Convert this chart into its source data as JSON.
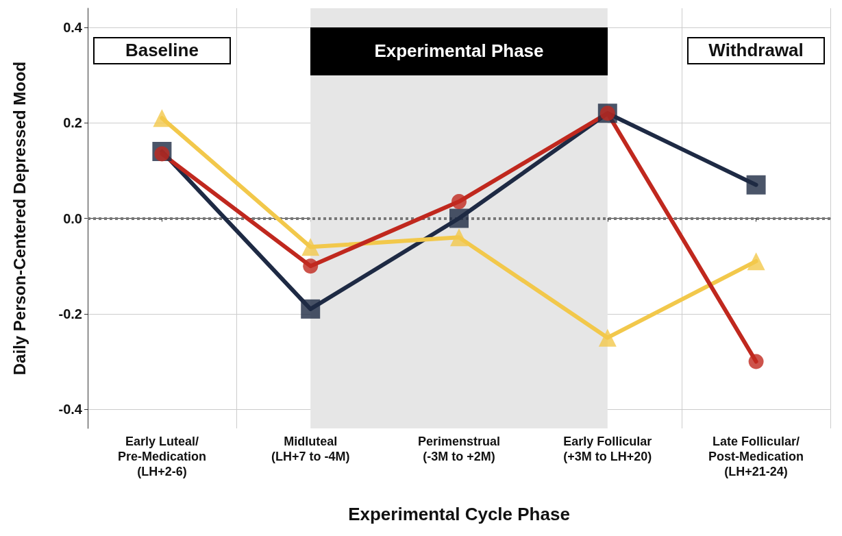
{
  "chart_data": {
    "type": "line",
    "xlabel": "Experimental Cycle Phase",
    "ylabel": "Daily Person-Centered Depressed Mood",
    "categories": [
      "Early Luteal/\nPre-Medication\n(LH+2-6)",
      "Midluteal\n(LH+7 to -4M)",
      "Perimenstrual\n(-3M to +2M)",
      "Early Follicular\n(+3M to LH+20)",
      "Late Follicular/\nPost-Medication\n(LH+21-24)"
    ],
    "series": [
      {
        "color": "#1e2a44",
        "marker": "square",
        "values": [
          0.14,
          -0.19,
          0.0,
          0.22,
          0.07
        ]
      },
      {
        "color": "#f2c84b",
        "marker": "triangle",
        "values": [
          0.21,
          -0.06,
          -0.04,
          -0.25,
          -0.09
        ]
      },
      {
        "color": "#c0281e",
        "marker": "circle",
        "values": [
          0.135,
          -0.1,
          0.035,
          0.22,
          -0.3
        ]
      }
    ],
    "ylim": [
      -0.44,
      0.44
    ],
    "yticks": [
      -0.4,
      -0.2,
      {
        "value": 0,
        "label": "0.0"
      },
      0.2,
      0.4
    ],
    "grid": true,
    "line_style": "solid",
    "ref_lines": [
      {
        "axis": "y",
        "value": 0,
        "color": "#777777",
        "line_style": "dotted"
      }
    ],
    "bands": [
      {
        "axis": "x",
        "from": "Midluteal\n(LH+7 to -4M)",
        "to": "Early Follicular\n(+3M to LH+20)",
        "label": "Experimental Phase",
        "color": "#e6e6e6"
      }
    ],
    "annotations": [
      "Baseline",
      "Withdrawal"
    ]
  }
}
